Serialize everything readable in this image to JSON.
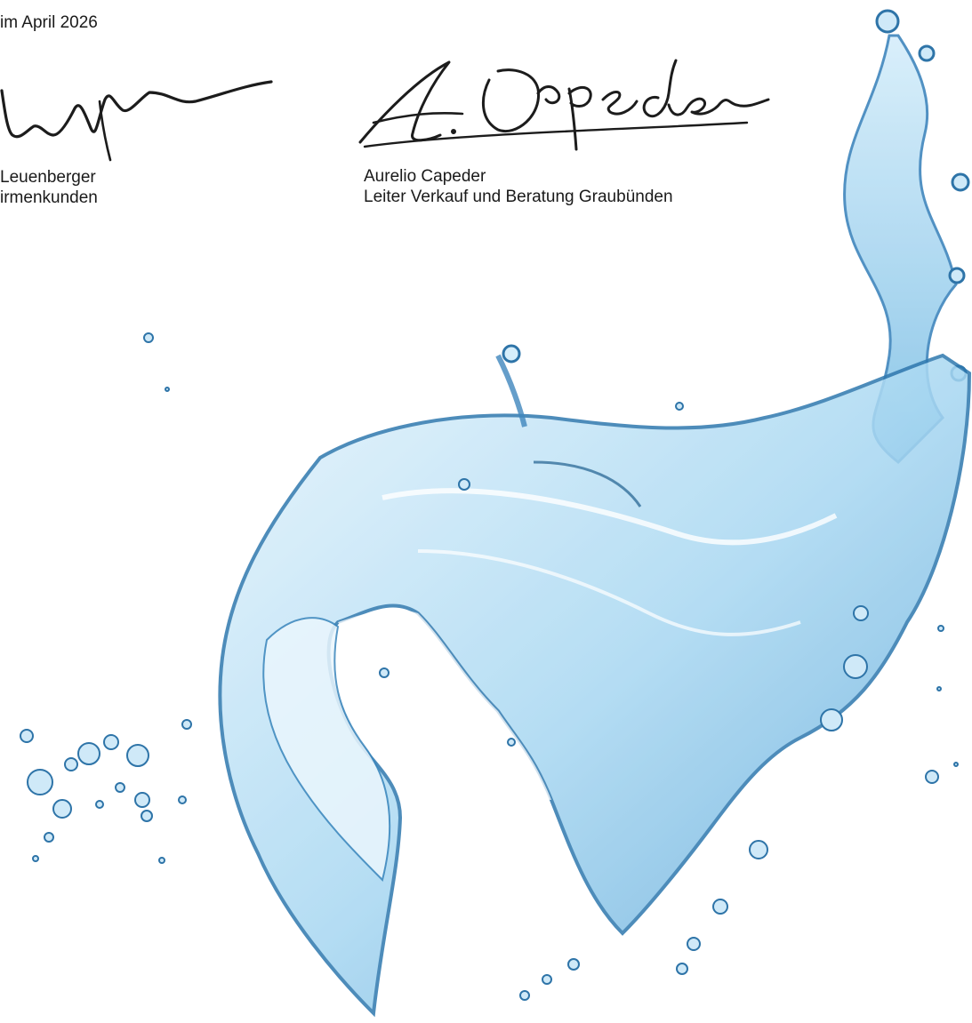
{
  "document": {
    "dateline": "im April 2026",
    "signatories": [
      {
        "name": "Leuenberger",
        "title": "irmenkunden"
      },
      {
        "name": "Aurelio Capeder",
        "title": "Leiter Verkauf und Beratung Graubünden"
      }
    ]
  },
  "colors": {
    "text": "#1a1a1a",
    "ink": "#1c1c1c",
    "water_dark": "#1f5f8f",
    "water_mid": "#4f9bd0",
    "water_light": "#bfe3f7"
  }
}
